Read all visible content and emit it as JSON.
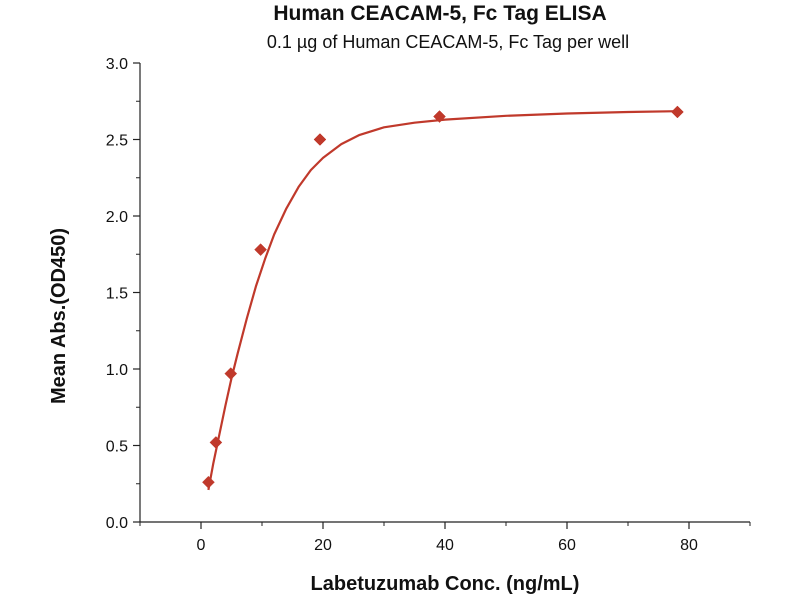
{
  "chart_data": {
    "type": "scatter",
    "title": "Human CEACAM-5, Fc Tag ELISA",
    "subtitle": "0.1 µg of Human CEACAM-5, Fc Tag per well",
    "xlabel": "Labetuzumab Conc. (ng/mL)",
    "ylabel": "Mean Abs.(OD450)",
    "xlim": [
      -10,
      90
    ],
    "ylim": [
      0,
      3.0
    ],
    "x_ticks": [
      0,
      20,
      40,
      60,
      80
    ],
    "y_ticks": [
      0.0,
      0.5,
      1.0,
      1.5,
      2.0,
      2.5,
      3.0
    ],
    "x_tick_labels": [
      "0",
      "20",
      "40",
      "60",
      "80"
    ],
    "y_tick_labels": [
      "0.0",
      "0.5",
      "1.0",
      "1.5",
      "2.0",
      "2.5",
      "3.0"
    ],
    "grid": false,
    "legend": "none",
    "series": [
      {
        "marker": "diamond",
        "color": "#c0392b",
        "points": [
          {
            "x": 1.22,
            "y": 0.26
          },
          {
            "x": 2.44,
            "y": 0.52
          },
          {
            "x": 4.88,
            "y": 0.97
          },
          {
            "x": 9.77,
            "y": 1.78
          },
          {
            "x": 19.5,
            "y": 2.5
          },
          {
            "x": 39.1,
            "y": 2.65
          },
          {
            "x": 78.1,
            "y": 2.68
          }
        ]
      }
    ],
    "fit_curve": {
      "color": "#c0392b",
      "points": [
        {
          "x": 1.22,
          "y": 0.21
        },
        {
          "x": 2.0,
          "y": 0.38
        },
        {
          "x": 3.0,
          "y": 0.57
        },
        {
          "x": 4.0,
          "y": 0.76
        },
        {
          "x": 5.0,
          "y": 0.94
        },
        {
          "x": 6.0,
          "y": 1.1
        },
        {
          "x": 7.5,
          "y": 1.33
        },
        {
          "x": 9.0,
          "y": 1.54
        },
        {
          "x": 10.5,
          "y": 1.72
        },
        {
          "x": 12.0,
          "y": 1.88
        },
        {
          "x": 14.0,
          "y": 2.05
        },
        {
          "x": 16.0,
          "y": 2.19
        },
        {
          "x": 18.0,
          "y": 2.3
        },
        {
          "x": 20.0,
          "y": 2.38
        },
        {
          "x": 23.0,
          "y": 2.47
        },
        {
          "x": 26.0,
          "y": 2.53
        },
        {
          "x": 30.0,
          "y": 2.58
        },
        {
          "x": 35.0,
          "y": 2.61
        },
        {
          "x": 40.0,
          "y": 2.63
        },
        {
          "x": 50.0,
          "y": 2.655
        },
        {
          "x": 60.0,
          "y": 2.67
        },
        {
          "x": 70.0,
          "y": 2.68
        },
        {
          "x": 78.1,
          "y": 2.685
        }
      ]
    }
  }
}
